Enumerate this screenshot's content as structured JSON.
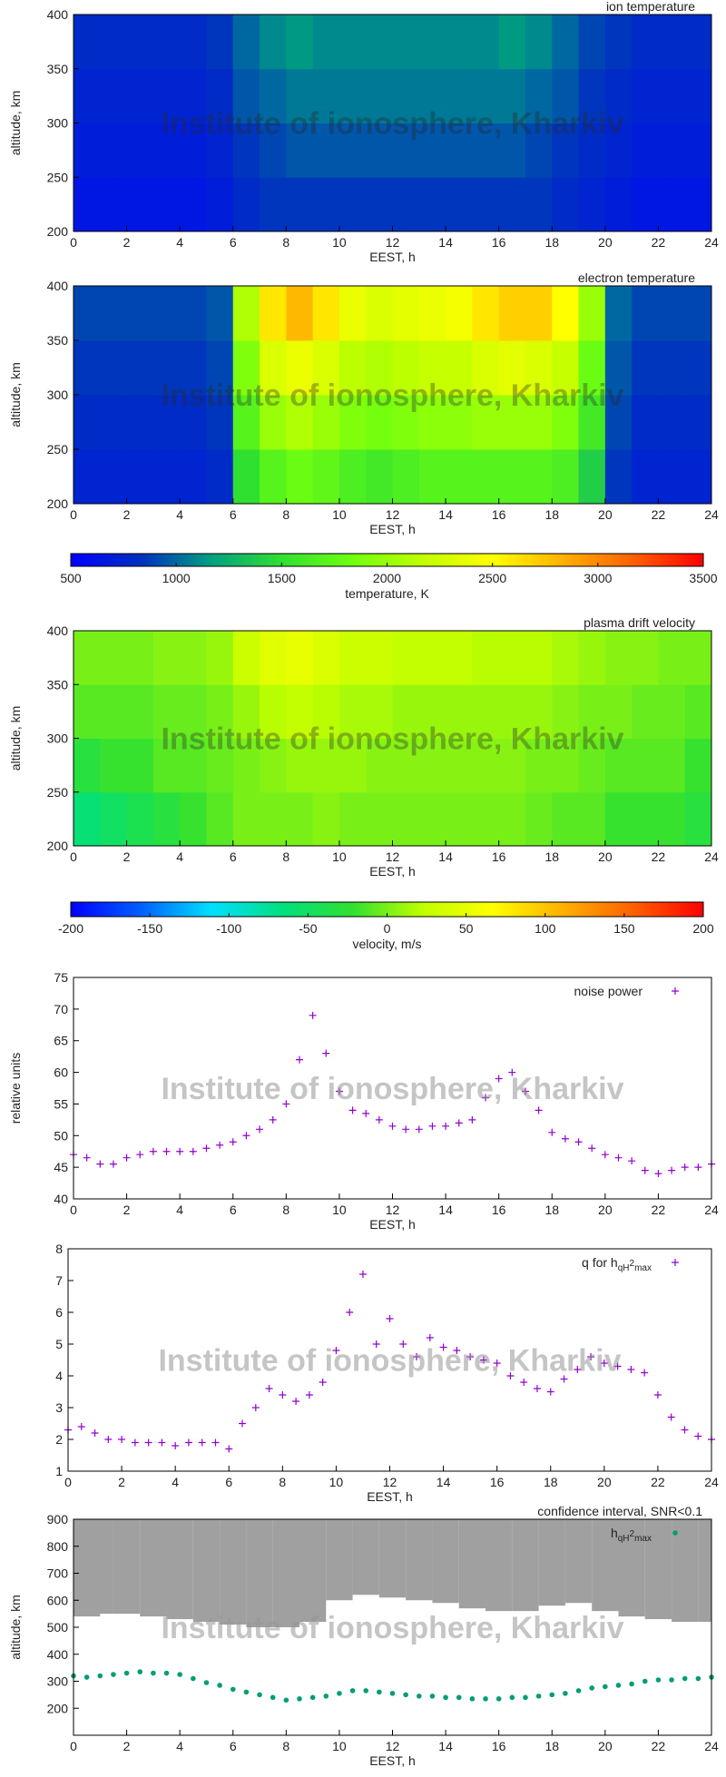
{
  "chart_data": [
    {
      "type": "heatmap",
      "title": "ion temperature",
      "watermark": "Institute of ionosphere, Kharkiv",
      "xlabel": "EEST, h",
      "ylabel": "altitude, km",
      "xlim": [
        0,
        24
      ],
      "ylim": [
        200,
        400
      ],
      "xticks": [
        0,
        2,
        4,
        6,
        8,
        10,
        12,
        14,
        16,
        18,
        20,
        22,
        24
      ],
      "yticks": [
        200,
        250,
        300,
        350,
        400
      ],
      "zlim": [
        500,
        3500
      ],
      "colormap": [
        "#0000ff",
        "#0030c0",
        "#00a080",
        "#30e030",
        "#70ff10",
        "#c0ff00",
        "#ffff00",
        "#ffb000",
        "#ff6000",
        "#ff0000"
      ],
      "z": [
        [
          650,
          650,
          650,
          650,
          650,
          700,
          800,
          850,
          850,
          850,
          850,
          850,
          850,
          850,
          850,
          850,
          850,
          850,
          800,
          750,
          700,
          650,
          650,
          650
        ],
        [
          700,
          700,
          700,
          700,
          700,
          750,
          850,
          900,
          950,
          950,
          950,
          950,
          950,
          950,
          950,
          950,
          950,
          900,
          850,
          800,
          750,
          700,
          700,
          700
        ],
        [
          750,
          750,
          750,
          750,
          750,
          800,
          950,
          1000,
          1050,
          1050,
          1050,
          1050,
          1050,
          1050,
          1050,
          1050,
          1050,
          1000,
          950,
          850,
          800,
          750,
          750,
          750
        ],
        [
          800,
          800,
          800,
          800,
          800,
          850,
          1000,
          1100,
          1150,
          1100,
          1100,
          1100,
          1100,
          1100,
          1100,
          1100,
          1150,
          1100,
          1000,
          900,
          850,
          800,
          800,
          800
        ]
      ]
    },
    {
      "type": "heatmap",
      "title": "electron temperature",
      "watermark": "Institute of ionosphere, Kharkiv",
      "xlabel": "EEST, h",
      "ylabel": "altitude, km",
      "xlim": [
        0,
        24
      ],
      "ylim": [
        200,
        400
      ],
      "xticks": [
        0,
        2,
        4,
        6,
        8,
        10,
        12,
        14,
        16,
        18,
        20,
        22,
        24
      ],
      "yticks": [
        200,
        250,
        300,
        350,
        400
      ],
      "zlim": [
        500,
        3500
      ],
      "colormap": [
        "#0000ff",
        "#0030c0",
        "#00a080",
        "#30e030",
        "#70ff10",
        "#c0ff00",
        "#ffff00",
        "#ffb000",
        "#ff6000",
        "#ff0000"
      ],
      "z": [
        [
          750,
          750,
          750,
          750,
          750,
          800,
          1500,
          1700,
          1800,
          1750,
          1650,
          1600,
          1650,
          1700,
          1700,
          1700,
          1700,
          1700,
          1650,
          1400,
          850,
          750,
          750,
          750
        ],
        [
          800,
          800,
          800,
          800,
          800,
          850,
          1700,
          2000,
          2100,
          2000,
          1900,
          1850,
          1900,
          1950,
          1950,
          2000,
          2000,
          2000,
          1900,
          1600,
          900,
          800,
          800,
          800
        ],
        [
          850,
          850,
          850,
          850,
          850,
          900,
          1900,
          2300,
          2400,
          2300,
          2150,
          2100,
          2150,
          2200,
          2200,
          2300,
          2350,
          2300,
          2200,
          1800,
          950,
          850,
          850,
          850
        ],
        [
          900,
          900,
          900,
          900,
          900,
          950,
          2100,
          2600,
          2800,
          2600,
          2400,
          2300,
          2350,
          2400,
          2450,
          2600,
          2700,
          2700,
          2500,
          2000,
          1000,
          900,
          900,
          900
        ]
      ]
    },
    {
      "type": "colorbar",
      "label": "temperature, K",
      "lim": [
        500,
        3500
      ],
      "ticks": [
        500,
        1000,
        1500,
        2000,
        2500,
        3000,
        3500
      ],
      "colormap": [
        "#0000ff",
        "#0030c0",
        "#00a080",
        "#30e030",
        "#70ff10",
        "#c0ff00",
        "#ffff00",
        "#ffb000",
        "#ff6000",
        "#ff0000"
      ]
    },
    {
      "type": "heatmap",
      "title": "plasma drift velocity",
      "watermark": "Institute of ionosphere, Kharkiv",
      "xlabel": "EEST, h",
      "ylabel": "altitude, km",
      "xlim": [
        0,
        24
      ],
      "ylim": [
        200,
        400
      ],
      "xticks": [
        0,
        2,
        4,
        6,
        8,
        10,
        12,
        14,
        16,
        18,
        20,
        22,
        24
      ],
      "yticks": [
        200,
        250,
        300,
        350,
        400
      ],
      "zlim": [
        -200,
        200
      ],
      "colormap": [
        "#0000ff",
        "#0060ff",
        "#00e0ff",
        "#00e080",
        "#30e030",
        "#c0ff00",
        "#ffff00",
        "#ffb000",
        "#ff6000",
        "#ff0000"
      ],
      "z": [
        [
          -60,
          -50,
          -40,
          -30,
          -20,
          -10,
          0,
          0,
          0,
          5,
          0,
          0,
          0,
          0,
          0,
          0,
          0,
          -5,
          -10,
          -10,
          -20,
          -20,
          -20,
          -30
        ],
        [
          -30,
          -20,
          -20,
          -10,
          -10,
          -5,
          0,
          5,
          10,
          10,
          10,
          5,
          5,
          5,
          5,
          5,
          5,
          0,
          0,
          -5,
          -10,
          -10,
          -10,
          -20
        ],
        [
          -10,
          -10,
          -10,
          -5,
          -5,
          0,
          10,
          20,
          25,
          20,
          15,
          15,
          10,
          10,
          10,
          10,
          10,
          10,
          5,
          0,
          0,
          -5,
          -5,
          -10
        ],
        [
          0,
          0,
          0,
          5,
          5,
          10,
          30,
          45,
          50,
          40,
          30,
          30,
          25,
          25,
          25,
          20,
          20,
          20,
          15,
          10,
          5,
          5,
          0,
          0
        ]
      ]
    },
    {
      "type": "colorbar",
      "label": "velocity, m/s",
      "lim": [
        -200,
        200
      ],
      "ticks": [
        -200,
        -150,
        -100,
        -50,
        0,
        50,
        100,
        150,
        200
      ],
      "colormap": [
        "#0000ff",
        "#0060ff",
        "#00e0ff",
        "#00e080",
        "#30e030",
        "#c0ff00",
        "#ffff00",
        "#ffb000",
        "#ff6000",
        "#ff0000"
      ]
    },
    {
      "type": "scatter",
      "watermark": "Institute of ionosphere, Kharkiv",
      "xlabel": "EEST, h",
      "ylabel": "relative units",
      "xlim": [
        0,
        24
      ],
      "ylim": [
        40,
        75
      ],
      "xticks": [
        0,
        2,
        4,
        6,
        8,
        10,
        12,
        14,
        16,
        18,
        20,
        22,
        24
      ],
      "yticks": [
        40,
        45,
        50,
        55,
        60,
        65,
        70,
        75
      ],
      "series": [
        {
          "name": "noise power",
          "color": "#9400d3",
          "marker": "+",
          "x": [
            0,
            0.5,
            1,
            1.5,
            2,
            2.5,
            3,
            3.5,
            4,
            4.5,
            5,
            5.5,
            6,
            6.5,
            7,
            7.5,
            8,
            8.5,
            9,
            9.5,
            10,
            10.5,
            11,
            11.5,
            12,
            12.5,
            13,
            13.5,
            14,
            14.5,
            15,
            15.5,
            16,
            16.5,
            17,
            17.5,
            18,
            18.5,
            19,
            19.5,
            20,
            20.5,
            21,
            21.5,
            22,
            22.5,
            23,
            23.5,
            24
          ],
          "values": [
            47,
            46.5,
            45.5,
            45.5,
            46.5,
            47,
            47.5,
            47.5,
            47.5,
            47.5,
            48,
            48.5,
            49,
            50,
            51,
            52.5,
            55,
            62,
            69,
            63,
            57,
            54,
            53.5,
            52.5,
            51.5,
            51,
            51,
            51.5,
            51.5,
            52,
            52.5,
            56,
            59,
            60,
            57,
            54,
            50.5,
            49.5,
            49,
            48,
            47,
            46.5,
            46,
            44.5,
            44,
            44.5,
            45,
            45,
            45.5
          ]
        }
      ]
    },
    {
      "type": "scatter",
      "watermark": "Institute of ionosphere, Kharkiv",
      "xlabel": "EEST, h",
      "xlim": [
        0,
        24
      ],
      "ylim": [
        1,
        8
      ],
      "xticks": [
        0,
        2,
        4,
        6,
        8,
        10,
        12,
        14,
        16,
        18,
        20,
        22,
        24
      ],
      "yticks": [
        1,
        2,
        3,
        4,
        5,
        6,
        7,
        8
      ],
      "series": [
        {
          "name_parts": [
            "q for h",
            "qH",
            "2",
            "max"
          ],
          "color": "#9400d3",
          "marker": "+",
          "x": [
            0,
            0.5,
            1,
            1.5,
            2,
            2.5,
            3,
            3.5,
            4,
            4.5,
            5,
            5.5,
            6,
            6.5,
            7,
            7.5,
            8,
            8.5,
            9,
            9.5,
            10,
            10.5,
            11,
            11.5,
            12,
            12.5,
            13,
            13.5,
            14,
            14.5,
            15,
            15.5,
            16,
            16.5,
            17,
            17.5,
            18,
            18.5,
            19,
            19.5,
            20,
            20.5,
            21,
            21.5,
            22,
            22.5,
            23,
            23.5,
            24
          ],
          "values": [
            2.3,
            2.4,
            2.2,
            2.0,
            2.0,
            1.9,
            1.9,
            1.9,
            1.8,
            1.9,
            1.9,
            1.9,
            1.7,
            2.5,
            3.0,
            3.6,
            3.4,
            3.2,
            3.4,
            3.8,
            4.8,
            6.0,
            7.2,
            5.0,
            5.8,
            5.0,
            4.6,
            5.2,
            4.9,
            4.8,
            4.6,
            4.5,
            4.4,
            4.0,
            3.8,
            3.6,
            3.5,
            3.9,
            4.2,
            4.6,
            4.4,
            4.3,
            4.2,
            4.1,
            3.4,
            2.7,
            2.3,
            2.1,
            2.0
          ]
        }
      ]
    },
    {
      "type": "scatter",
      "watermark": "Institute of ionosphere, Kharkiv",
      "xlabel": "EEST, h",
      "ylabel": "altitude, km",
      "xlim": [
        0,
        24
      ],
      "ylim": [
        100,
        900
      ],
      "xticks": [
        0,
        2,
        4,
        6,
        8,
        10,
        12,
        14,
        16,
        18,
        20,
        22,
        24
      ],
      "yticks": [
        200,
        300,
        400,
        500,
        600,
        700,
        800,
        900
      ],
      "series": [
        {
          "name": "confidence interval, SNR<0.1",
          "color": "#a0a0a0",
          "marker": "band",
          "x": [
            0,
            1,
            2,
            3,
            4,
            5,
            6,
            7,
            8,
            9,
            10,
            11,
            12,
            13,
            14,
            15,
            16,
            17,
            18,
            19,
            20,
            21,
            22,
            23,
            24
          ],
          "values": [
            540,
            550,
            550,
            540,
            530,
            520,
            510,
            500,
            500,
            520,
            600,
            620,
            610,
            600,
            590,
            570,
            560,
            560,
            580,
            590,
            560,
            540,
            530,
            520,
            520
          ]
        },
        {
          "name_parts": [
            "h",
            "qH",
            "2",
            "max"
          ],
          "color": "#009e73",
          "marker": "dot",
          "x": [
            0,
            0.5,
            1,
            1.5,
            2,
            2.5,
            3,
            3.5,
            4,
            4.5,
            5,
            5.5,
            6,
            6.5,
            7,
            7.5,
            8,
            8.5,
            9,
            9.5,
            10,
            10.5,
            11,
            11.5,
            12,
            12.5,
            13,
            13.5,
            14,
            14.5,
            15,
            15.5,
            16,
            16.5,
            17,
            17.5,
            18,
            18.5,
            19,
            19.5,
            20,
            20.5,
            21,
            21.5,
            22,
            22.5,
            23,
            23.5,
            24
          ],
          "values": [
            320,
            315,
            320,
            325,
            330,
            335,
            330,
            330,
            325,
            310,
            295,
            285,
            270,
            260,
            250,
            240,
            230,
            235,
            240,
            245,
            255,
            265,
            265,
            260,
            255,
            250,
            245,
            245,
            240,
            240,
            235,
            235,
            235,
            240,
            240,
            245,
            250,
            255,
            265,
            275,
            280,
            285,
            290,
            300,
            305,
            305,
            310,
            310,
            315
          ]
        }
      ]
    }
  ]
}
